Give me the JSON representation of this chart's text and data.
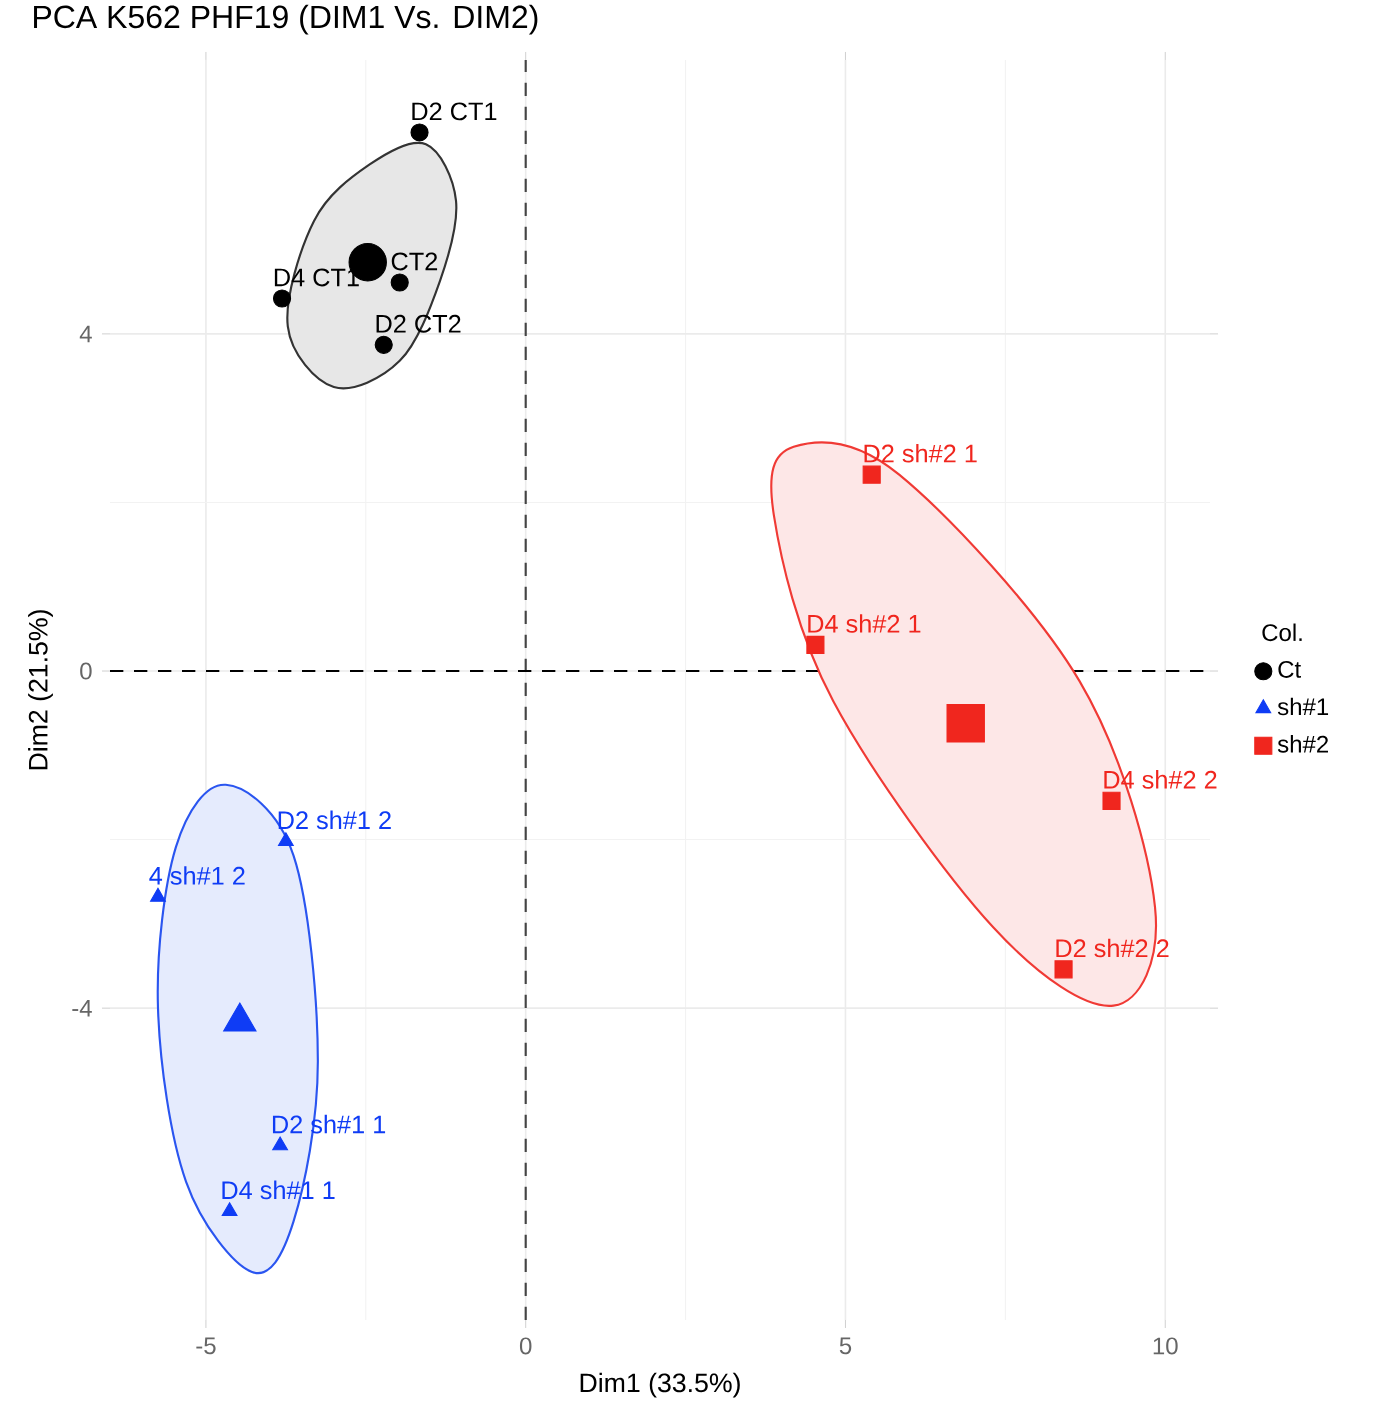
{
  "chart_data": {
    "type": "scatter",
    "title": "PCA K562 PHF19 (DIM1 Vs. DIM2)",
    "xlabel": "Dim1 (33.5%)",
    "ylabel": "Dim2 (21.5%)",
    "legend_title": "Col.",
    "xlim": [
      -6.5,
      10.7
    ],
    "ylim": [
      -7.7,
      7.25
    ],
    "xticks": [
      -5,
      0,
      5,
      10
    ],
    "yticks": [
      -4,
      0,
      4
    ],
    "grid": true,
    "legend": "right",
    "ref_lines": [
      {
        "axis": "x",
        "value": 0,
        "color": "#444444",
        "line_style": "dashed"
      },
      {
        "axis": "y",
        "value": 0,
        "color": "#000000",
        "line_style": "dashed"
      }
    ],
    "series": [
      {
        "type": "area",
        "color": "#333333",
        "x": [
          -1.56,
          -1.09,
          -1.34,
          -1.97,
          -3.0,
          -3.72,
          -3.31,
          -2.44
        ],
        "values": [
          6.25,
          5.58,
          4.63,
          3.68,
          3.37,
          4.09,
          5.34,
          6.01
        ]
      },
      {
        "type": "area",
        "color": "#2a55f0",
        "x": [
          -4.69,
          -3.63,
          -3.25,
          -3.63,
          -4.28,
          -5.31,
          -5.75,
          -5.47
        ],
        "values": [
          -1.35,
          -2.19,
          -4.63,
          -6.53,
          -7.13,
          -6.06,
          -3.99,
          -2.09
        ]
      },
      {
        "type": "area",
        "color": "#f03a35",
        "x": [
          4.19,
          5.84,
          8.66,
          9.84,
          9.19,
          7.31,
          4.81,
          3.88
        ],
        "values": [
          2.66,
          2.33,
          -0.12,
          -2.8,
          -3.97,
          -3.04,
          -0.36,
          1.85
        ]
      },
      {
        "type": "scatter",
        "color": "#000000",
        "marker": "circle",
        "x": [
          -2.47
        ],
        "values": [
          4.85
        ]
      },
      {
        "type": "scatter",
        "color": "#0f3cf5",
        "marker": "triangle",
        "x": [
          -4.47
        ],
        "values": [
          -4.16
        ]
      },
      {
        "type": "scatter",
        "color": "#f0261e",
        "marker": "square",
        "x": [
          6.88
        ],
        "values": [
          -0.62
        ]
      },
      {
        "type": "scatter",
        "name": "Ct",
        "color": "#000000",
        "marker": "circle",
        "x": [
          -1.66,
          -3.81,
          -1.97,
          -2.22
        ],
        "values": [
          6.39,
          4.42,
          4.61,
          3.87
        ],
        "value_labels": [
          "D2 CT1",
          "D4 CT1",
          "CT2",
          "D2 CT2"
        ]
      },
      {
        "type": "scatter",
        "name": "sh#1",
        "color": "#0f3cf5",
        "marker": "triangle",
        "x": [
          -3.75,
          -5.75,
          -3.84,
          -4.63
        ],
        "values": [
          -2.02,
          -2.68,
          -5.63,
          -6.41
        ],
        "value_labels": [
          "D2 sh#1 2",
          "4 sh#1 2",
          "D2 sh#1 1",
          "D4 sh#1 1"
        ]
      },
      {
        "type": "scatter",
        "name": "sh#2",
        "color": "#f0261e",
        "marker": "square",
        "x": [
          5.41,
          4.53,
          9.16,
          8.41
        ],
        "values": [
          2.33,
          0.31,
          -1.54,
          -3.54
        ],
        "value_labels": [
          "D2 sh#2 1",
          "D4 sh#2 1",
          "D4 sh#2 2",
          "D2 sh#2 2"
        ]
      }
    ]
  }
}
